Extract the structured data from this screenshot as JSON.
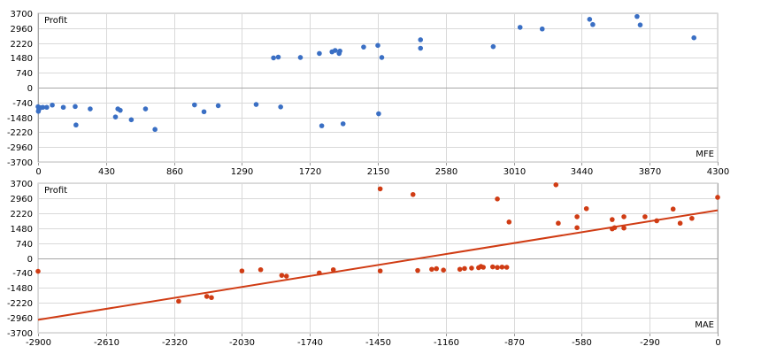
{
  "chart_data": [
    {
      "type": "scatter",
      "ylabel": "Profit",
      "xlabel": "MFE",
      "color": "#3a6fc4",
      "xlim": [
        0,
        4300
      ],
      "ylim": [
        -3700,
        3700
      ],
      "x_ticks": [
        0,
        430,
        860,
        1290,
        1720,
        2150,
        2580,
        3010,
        3440,
        3870,
        4300
      ],
      "y_ticks": [
        3700,
        2960,
        2220,
        1480,
        740,
        0,
        -740,
        -1480,
        -2220,
        -2960,
        -3700
      ],
      "grid": true,
      "points": [
        {
          "x": 0,
          "y": -950
        },
        {
          "x": 2,
          "y": -1180
        },
        {
          "x": 5,
          "y": -1080
        },
        {
          "x": 15,
          "y": -1000
        },
        {
          "x": 30,
          "y": -980
        },
        {
          "x": 55,
          "y": -980
        },
        {
          "x": 90,
          "y": -870
        },
        {
          "x": 160,
          "y": -980
        },
        {
          "x": 235,
          "y": -940
        },
        {
          "x": 240,
          "y": -1860
        },
        {
          "x": 330,
          "y": -1060
        },
        {
          "x": 490,
          "y": -1460
        },
        {
          "x": 505,
          "y": -1060
        },
        {
          "x": 520,
          "y": -1130
        },
        {
          "x": 590,
          "y": -1600
        },
        {
          "x": 680,
          "y": -1060
        },
        {
          "x": 740,
          "y": -2080
        },
        {
          "x": 990,
          "y": -860
        },
        {
          "x": 1050,
          "y": -1200
        },
        {
          "x": 1140,
          "y": -900
        },
        {
          "x": 1380,
          "y": -840
        },
        {
          "x": 1490,
          "y": 1480
        },
        {
          "x": 1520,
          "y": 1520
        },
        {
          "x": 1535,
          "y": -960
        },
        {
          "x": 1660,
          "y": 1500
        },
        {
          "x": 1780,
          "y": 1700
        },
        {
          "x": 1795,
          "y": -1900
        },
        {
          "x": 1860,
          "y": 1780
        },
        {
          "x": 1880,
          "y": 1850
        },
        {
          "x": 1905,
          "y": 1700
        },
        {
          "x": 1910,
          "y": 1820
        },
        {
          "x": 1930,
          "y": -1800
        },
        {
          "x": 2060,
          "y": 2020
        },
        {
          "x": 2150,
          "y": 2100
        },
        {
          "x": 2155,
          "y": -1300
        },
        {
          "x": 2175,
          "y": 1500
        },
        {
          "x": 2420,
          "y": 2380
        },
        {
          "x": 2420,
          "y": 1960
        },
        {
          "x": 2880,
          "y": 2040
        },
        {
          "x": 3050,
          "y": 3000
        },
        {
          "x": 3190,
          "y": 2920
        },
        {
          "x": 3490,
          "y": 3400
        },
        {
          "x": 3510,
          "y": 3140
        },
        {
          "x": 3790,
          "y": 3540
        },
        {
          "x": 3810,
          "y": 3120
        },
        {
          "x": 4150,
          "y": 2480
        }
      ]
    },
    {
      "type": "scatter",
      "ylabel": "Profit",
      "xlabel": "MAE",
      "color": "#d03c14",
      "xlim": [
        -2900,
        0
      ],
      "ylim": [
        -3700,
        3700
      ],
      "x_ticks": [
        -2900,
        -2610,
        -2320,
        -2030,
        -1740,
        -1450,
        -1160,
        -870,
        -580,
        -290,
        0
      ],
      "y_ticks": [
        3700,
        2960,
        2220,
        1480,
        740,
        0,
        -740,
        -1480,
        -2220,
        -2960,
        -3700
      ],
      "grid": true,
      "trendline": {
        "x": [
          -2900,
          0
        ],
        "y": [
          -3060,
          2360
        ]
      },
      "points": [
        {
          "x": -2900,
          "y": -660
        },
        {
          "x": -2300,
          "y": -2140
        },
        {
          "x": -2180,
          "y": -1900
        },
        {
          "x": -2160,
          "y": -1960
        },
        {
          "x": -2030,
          "y": -640
        },
        {
          "x": -1950,
          "y": -580
        },
        {
          "x": -1860,
          "y": -860
        },
        {
          "x": -1840,
          "y": -900
        },
        {
          "x": -1700,
          "y": -740
        },
        {
          "x": -1640,
          "y": -580
        },
        {
          "x": -1440,
          "y": 3420
        },
        {
          "x": -1440,
          "y": -640
        },
        {
          "x": -1300,
          "y": 3140
        },
        {
          "x": -1280,
          "y": -620
        },
        {
          "x": -1220,
          "y": -560
        },
        {
          "x": -1200,
          "y": -530
        },
        {
          "x": -1170,
          "y": -600
        },
        {
          "x": -1100,
          "y": -560
        },
        {
          "x": -1080,
          "y": -520
        },
        {
          "x": -1050,
          "y": -500
        },
        {
          "x": -1020,
          "y": -480
        },
        {
          "x": -1010,
          "y": -420
        },
        {
          "x": -1000,
          "y": -460
        },
        {
          "x": -960,
          "y": -440
        },
        {
          "x": -940,
          "y": -470
        },
        {
          "x": -920,
          "y": -450
        },
        {
          "x": -900,
          "y": -460
        },
        {
          "x": -940,
          "y": 2920
        },
        {
          "x": -890,
          "y": 1780
        },
        {
          "x": -690,
          "y": 3620
        },
        {
          "x": -680,
          "y": 1720
        },
        {
          "x": -560,
          "y": 2440
        },
        {
          "x": -600,
          "y": 1500
        },
        {
          "x": -600,
          "y": 2040
        },
        {
          "x": -450,
          "y": 1440
        },
        {
          "x": -450,
          "y": 1900
        },
        {
          "x": -440,
          "y": 1500
        },
        {
          "x": -400,
          "y": 2040
        },
        {
          "x": -400,
          "y": 1480
        },
        {
          "x": -310,
          "y": 2040
        },
        {
          "x": -260,
          "y": 1840
        },
        {
          "x": -190,
          "y": 2420
        },
        {
          "x": -160,
          "y": 1720
        },
        {
          "x": -110,
          "y": 1960
        },
        {
          "x": 0,
          "y": 3000
        }
      ]
    }
  ]
}
